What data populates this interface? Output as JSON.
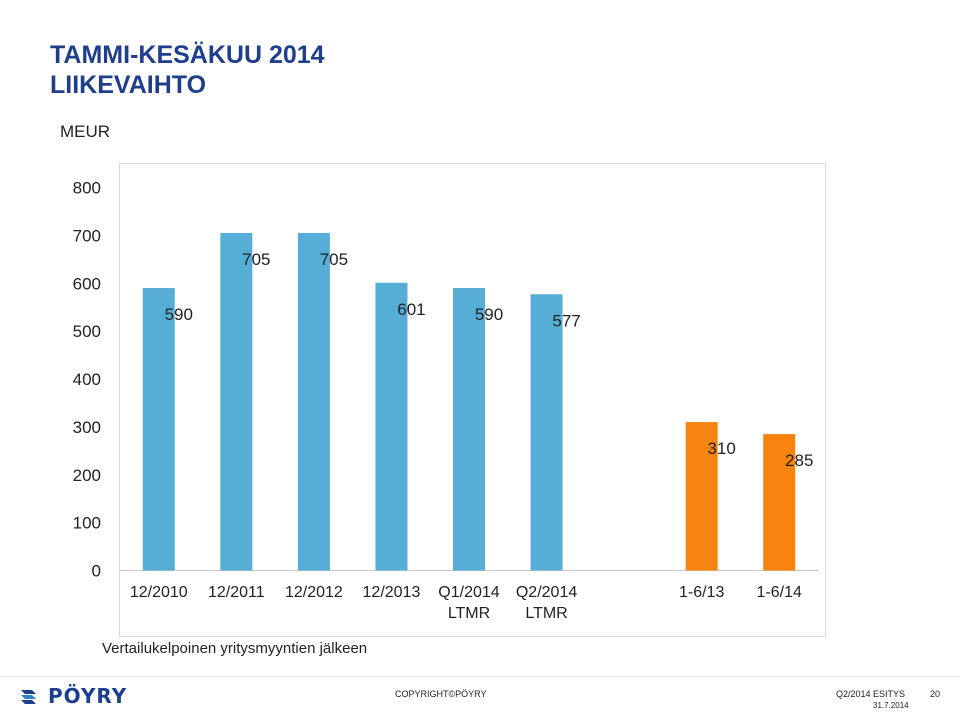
{
  "title_lines": [
    "TAMMI-KESÄKUU 2014",
    "LIIKEVAIHTO"
  ],
  "unit_label": "MEUR",
  "note": "Vertailukelpoinen yritysmyyntien jälkeen",
  "footer": {
    "logo_text": "PÖYRY",
    "copyright": "COPYRIGHT©PÖYRY",
    "presentation": "Q2/2014  ESITYS",
    "date": "31.7.2014",
    "page": "20"
  },
  "colors": {
    "bar_blue": "#56aed6",
    "bar_orange": "#f7840f",
    "title": "#1f3f8c",
    "logo": "#1d3f8f"
  },
  "chart_data": {
    "type": "bar",
    "categories": [
      [
        "12/2010"
      ],
      [
        "12/2011"
      ],
      [
        "12/2012"
      ],
      [
        "12/2013"
      ],
      [
        "Q1/2014",
        "LTMR"
      ],
      [
        "Q2/2014",
        "LTMR"
      ],
      [
        ""
      ],
      [
        "1-6/13"
      ],
      [
        "1-6/14"
      ]
    ],
    "values": [
      590,
      705,
      705,
      601,
      590,
      577,
      null,
      310,
      285
    ],
    "value_labels": [
      "590",
      "705",
      "705",
      "601",
      "590",
      "577",
      "",
      "310",
      "285"
    ],
    "bar_colors": [
      "#56aed6",
      "#56aed6",
      "#56aed6",
      "#56aed6",
      "#56aed6",
      "#56aed6",
      "",
      "#f7840f",
      "#f7840f"
    ],
    "ylim": [
      0,
      800
    ],
    "yticks": [
      0,
      100,
      200,
      300,
      400,
      500,
      600,
      700,
      800
    ],
    "grid": false,
    "xlabel": "",
    "ylabel": ""
  }
}
